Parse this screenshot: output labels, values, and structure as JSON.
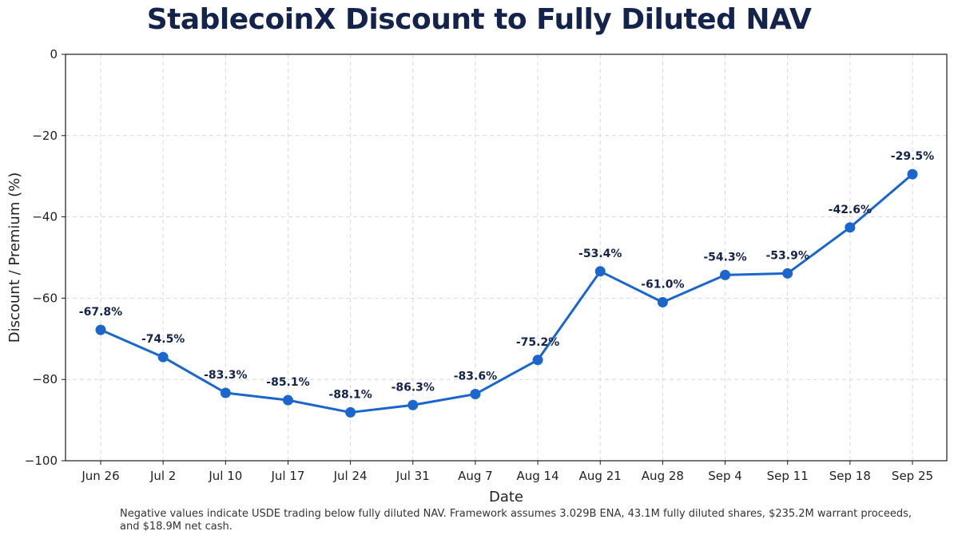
{
  "chart_data": {
    "type": "line",
    "title": "StablecoinX Discount to Fully Diluted NAV",
    "xlabel": "Date",
    "ylabel": "Discount / Premium (%)",
    "categories": [
      "Jun 26",
      "Jul 2",
      "Jul 10",
      "Jul 17",
      "Jul 24",
      "Jul 31",
      "Aug 7",
      "Aug 14",
      "Aug 21",
      "Aug 28",
      "Sep 4",
      "Sep 11",
      "Sep 18",
      "Sep 25"
    ],
    "values": [
      -67.8,
      -74.5,
      -83.3,
      -85.1,
      -88.1,
      -86.3,
      -83.6,
      -75.2,
      -53.4,
      -61.0,
      -54.3,
      -53.9,
      -42.6,
      -29.5
    ],
    "data_labels": [
      "-67.8%",
      "-74.5%",
      "-83.3%",
      "-85.1%",
      "-88.1%",
      "-86.3%",
      "-83.6%",
      "-75.2%",
      "-53.4%",
      "-61.0%",
      "-54.3%",
      "-53.9%",
      "-42.6%",
      "-29.5%"
    ],
    "ylim": [
      -100,
      0
    ],
    "yticks": [
      0,
      -20,
      -40,
      -60,
      -80,
      -100
    ],
    "ytick_labels": [
      "0",
      "−20",
      "−40",
      "−60",
      "−80",
      "−100"
    ],
    "grid": true,
    "line_color": "#1a66cc",
    "label_color": "#13234b"
  },
  "footnote": "Negative values indicate USDE trading below fully diluted NAV.  Framework assumes 3.029B ENA, 43.1M fully diluted shares, $235.2M warrant proceeds, and $18.9M net cash."
}
